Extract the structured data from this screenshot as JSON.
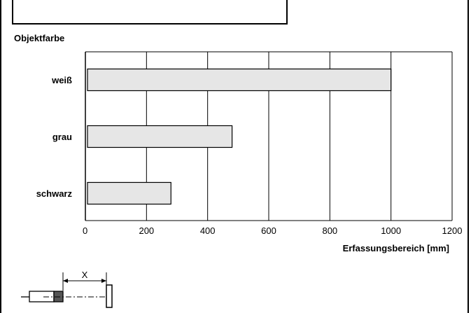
{
  "chart_data": {
    "type": "bar",
    "orientation": "horizontal",
    "ylabel": "Objektfarbe",
    "xlabel": "Erfassungsbereich [mm]",
    "categories": [
      "weiß",
      "grau",
      "schwarz"
    ],
    "values": [
      1000,
      480,
      280
    ],
    "xlim": [
      0,
      1200
    ],
    "xticks": [
      "0",
      "200",
      "400",
      "600",
      "800",
      "1000",
      "1200"
    ],
    "grid": true,
    "bar_color": "#e6e6e6",
    "bar_stroke": "#000000"
  },
  "diagram": {
    "distance_label": "X"
  }
}
